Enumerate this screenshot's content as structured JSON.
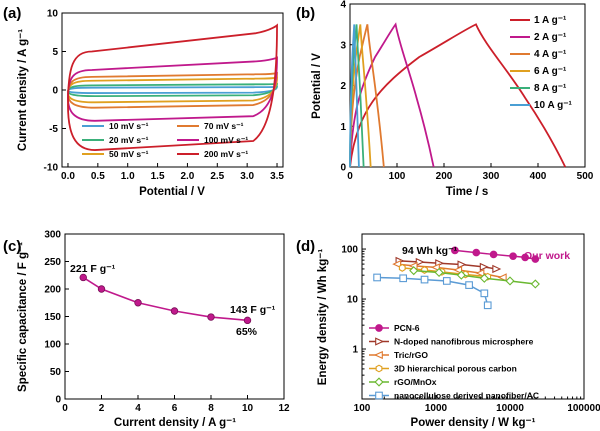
{
  "panels": {
    "a": {
      "label": "(a)",
      "xlabel": "Potential / V",
      "ylabel": "Current density / A g⁻¹"
    },
    "b": {
      "label": "(b)",
      "xlabel": "Time / s",
      "ylabel": "Potential / V"
    },
    "c": {
      "label": "(c)",
      "xlabel": "Current density / A g⁻¹",
      "ylabel": "Specific capacitance / F g⁻¹",
      "ann1": "221 F g⁻¹",
      "ann2": "143 F g⁻¹",
      "ann3": "65%"
    },
    "d": {
      "label": "(d)",
      "xlabel": "Power density / W kg⁻¹",
      "ylabel": "Energy density / Wh kg⁻¹",
      "ann1": "94 Wh kg⁻¹",
      "ann2": "Our work"
    }
  },
  "chart_data": [
    {
      "id": "a",
      "type": "line",
      "xlabel": "Potential / V",
      "ylabel": "Current density / A g⁻¹",
      "xlim": [
        -0.1,
        3.6
      ],
      "ylim": [
        -10,
        10
      ],
      "xticks": [
        0.0,
        0.5,
        1.0,
        1.5,
        2.0,
        2.5,
        3.0,
        3.5
      ],
      "xtick_labels": [
        "0.0",
        "0.5",
        "1.0",
        "1.5",
        "2.0",
        "2.5",
        "3.0",
        "3.5"
      ],
      "yticks": [
        -10,
        -5,
        0,
        5,
        10
      ],
      "legend_position": "bottom-center",
      "legend_columns": 2,
      "series": [
        {
          "name": "10 mV s⁻¹",
          "color": "#4a9fd4",
          "y_top_start": 0.3,
          "y_top_end": 0.4,
          "y_bottom": -0.4
        },
        {
          "name": "20 mV s⁻¹",
          "color": "#3ab07a",
          "y_top_start": 0.6,
          "y_top_end": 0.8,
          "y_bottom": -0.8
        },
        {
          "name": "50 mV s⁻¹",
          "color": "#e0a020",
          "y_top_start": 1.2,
          "y_top_end": 1.6,
          "y_bottom": -1.6
        },
        {
          "name": "70 mV s⁻¹",
          "color": "#e07a30",
          "y_top_start": 1.7,
          "y_top_end": 2.2,
          "y_bottom": -2.3
        },
        {
          "name": "100 mV s⁻¹",
          "color": "#c0198c",
          "y_top_start": 2.6,
          "y_top_end": 4.2,
          "y_bottom": -4.0
        },
        {
          "name": "200 mV s⁻¹",
          "color": "#cc1f2a",
          "y_top_start": 5.0,
          "y_top_end": 8.4,
          "y_bottom": -7.8
        }
      ]
    },
    {
      "id": "b",
      "type": "line",
      "xlabel": "Time / s",
      "ylabel": "Potential / V",
      "xlim": [
        0,
        500
      ],
      "ylim": [
        0,
        4
      ],
      "xticks": [
        0,
        100,
        200,
        300,
        400,
        500
      ],
      "yticks": [
        0,
        1,
        2,
        3,
        4
      ],
      "legend_position": "right",
      "series": [
        {
          "name": "1 A g⁻¹",
          "color": "#cc1f2a",
          "t_peak": 268,
          "t_end": 458
        },
        {
          "name": "2 A g⁻¹",
          "color": "#c0198c",
          "t_peak": 97,
          "t_end": 178
        },
        {
          "name": "4 A g⁻¹",
          "color": "#e07a30",
          "t_peak": 37,
          "t_end": 72
        },
        {
          "name": "6 A g⁻¹",
          "color": "#e0a020",
          "t_peak": 22,
          "t_end": 44
        },
        {
          "name": "8 A g⁻¹",
          "color": "#3ab07a",
          "t_peak": 14,
          "t_end": 29
        },
        {
          "name": "10 A g⁻¹",
          "color": "#4a9fd4",
          "t_peak": 9,
          "t_end": 19
        }
      ]
    },
    {
      "id": "c",
      "type": "line",
      "xlabel": "Current density / A g⁻¹",
      "ylabel": "Specific capacitance / F g⁻¹",
      "xlim": [
        0,
        12
      ],
      "ylim": [
        0,
        300
      ],
      "xticks": [
        0,
        2,
        4,
        6,
        8,
        10,
        12
      ],
      "yticks": [
        0,
        50,
        100,
        150,
        200,
        250,
        300
      ],
      "color": "#c0198c",
      "x": [
        1,
        2,
        4,
        6,
        8,
        10
      ],
      "y": [
        221,
        200,
        175,
        160,
        149,
        143
      ]
    },
    {
      "id": "d",
      "type": "scatter",
      "xlabel": "Power density / W kg⁻¹",
      "ylabel": "Energy density / Wh kg⁻¹",
      "xscale": "log",
      "yscale": "log",
      "xlim": [
        100,
        100000
      ],
      "ylim": [
        0.1,
        200
      ],
      "xticks": [
        100,
        1000,
        10000,
        100000
      ],
      "xtick_labels": [
        "100",
        "1000",
        "10000",
        "100000"
      ],
      "yticks": [
        0.1,
        1,
        10,
        100
      ],
      "ytick_labels": [
        "",
        "1",
        "10",
        "100"
      ],
      "legend_position": "bottom-left",
      "series": [
        {
          "name": "PCN-6",
          "color": "#c0198c",
          "marker": "circle",
          "x": [
            1800,
            3500,
            6000,
            11000,
            16000,
            22000
          ],
          "y": [
            94,
            85,
            78,
            72,
            68,
            63
          ]
        },
        {
          "name": "N-doped nanofibrous microsphere",
          "color": "#a0392a",
          "marker": "triangle-right",
          "x": [
            320,
            600,
            1100,
            2200,
            4400,
            6500
          ],
          "y": [
            58,
            55,
            52,
            49,
            44,
            40
          ]
        },
        {
          "name": "Tric/rGO",
          "color": "#e07a30",
          "marker": "triangle-left",
          "x": [
            300,
            500,
            1000,
            2000,
            4000,
            8000
          ],
          "y": [
            50,
            46,
            43,
            38,
            33,
            27
          ]
        },
        {
          "name": "3D hierarchical porous carbon",
          "color": "#e0a020",
          "marker": "hexagon",
          "x": [
            350,
            700,
            1200,
            2500,
            5000
          ],
          "y": [
            42,
            38,
            35,
            31,
            28
          ]
        },
        {
          "name": "rGO/MnOx",
          "color": "#6ab830",
          "marker": "diamond",
          "x": [
            500,
            1100,
            2200,
            4500,
            10000,
            22000
          ],
          "y": [
            37,
            34,
            30,
            26,
            23,
            20
          ]
        },
        {
          "name": "nanocellulose derived  nanofiber/AC",
          "color": "#5b9bd5",
          "marker": "square",
          "x": [
            160,
            360,
            700,
            1400,
            2800,
            4500,
            5000
          ],
          "y": [
            27,
            26,
            24.5,
            23,
            19,
            13,
            7.5
          ]
        }
      ]
    }
  ]
}
